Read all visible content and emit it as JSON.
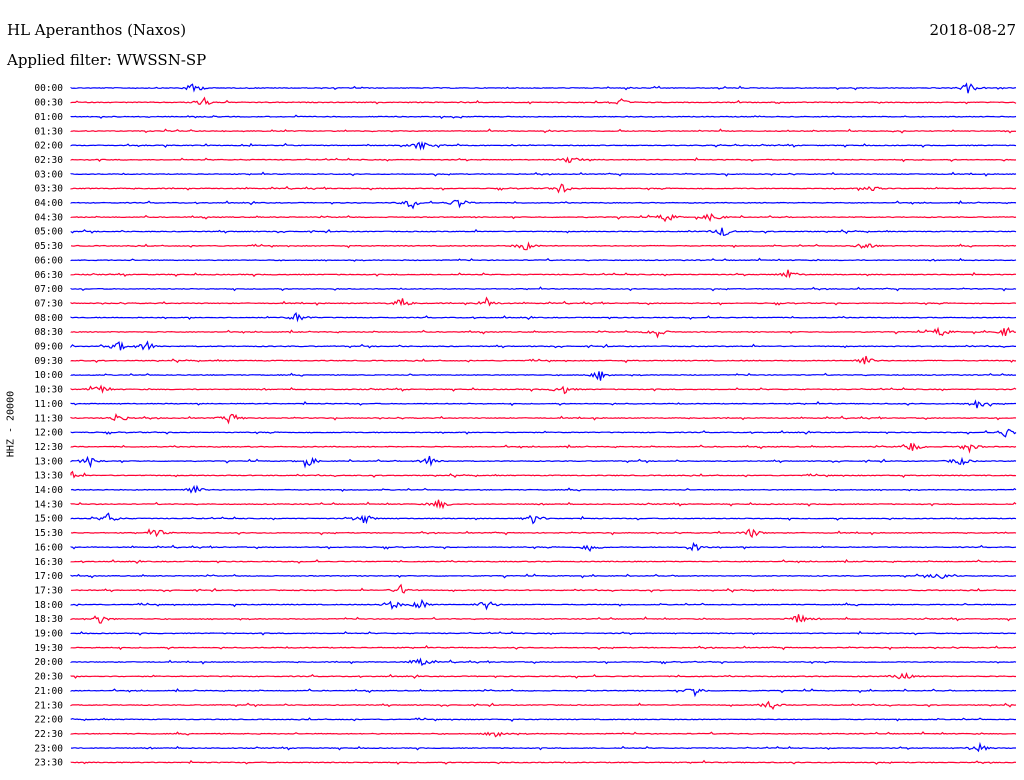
{
  "header": {
    "station": "HL Aperanthos (Naxos)",
    "date": "2018-08-27",
    "filter": "Applied filter: WWSSN-SP"
  },
  "chart_data": {
    "type": "line",
    "channel_label": "HHZ - 20000",
    "trace_colors": [
      "#0000ff",
      "#ff0033"
    ],
    "grid": false,
    "rows": [
      {
        "time": "00:00",
        "events": [
          0.13,
          0.95
        ]
      },
      {
        "time": "00:30",
        "events": [
          0.14,
          0.58
        ]
      },
      {
        "time": "01:00",
        "events": []
      },
      {
        "time": "01:30",
        "events": []
      },
      {
        "time": "02:00",
        "events": [
          0.37
        ]
      },
      {
        "time": "02:30",
        "events": [
          0.53
        ]
      },
      {
        "time": "03:00",
        "events": []
      },
      {
        "time": "03:30",
        "events": [
          0.52,
          0.85
        ]
      },
      {
        "time": "04:00",
        "events": [
          0.36,
          0.41
        ]
      },
      {
        "time": "04:30",
        "events": [
          0.63,
          0.68
        ]
      },
      {
        "time": "05:00",
        "events": [
          0.69
        ]
      },
      {
        "time": "05:30",
        "events": [
          0.48,
          0.84
        ]
      },
      {
        "time": "06:00",
        "events": []
      },
      {
        "time": "06:30",
        "events": [
          0.76
        ]
      },
      {
        "time": "07:00",
        "events": []
      },
      {
        "time": "07:30",
        "events": [
          0.35,
          0.44
        ]
      },
      {
        "time": "08:00",
        "events": [
          0.24
        ]
      },
      {
        "time": "08:30",
        "events": [
          0.62,
          0.92,
          0.99
        ]
      },
      {
        "time": "09:00",
        "events": [
          0.05,
          0.08
        ]
      },
      {
        "time": "09:30",
        "events": [
          0.84
        ]
      },
      {
        "time": "10:00",
        "events": [
          0.56
        ]
      },
      {
        "time": "10:30",
        "events": [
          0.03,
          0.52
        ]
      },
      {
        "time": "11:00",
        "events": [
          0.96
        ]
      },
      {
        "time": "11:30",
        "events": [
          0.05,
          0.17
        ]
      },
      {
        "time": "12:00",
        "events": [
          0.99
        ]
      },
      {
        "time": "12:30",
        "events": [
          0.89,
          0.95
        ]
      },
      {
        "time": "13:00",
        "events": [
          0.02,
          0.25,
          0.38,
          0.94
        ]
      },
      {
        "time": "13:30",
        "events": [
          0.0
        ]
      },
      {
        "time": "14:00",
        "events": [
          0.13
        ]
      },
      {
        "time": "14:30",
        "events": [
          0.39
        ]
      },
      {
        "time": "15:00",
        "events": [
          0.04,
          0.31,
          0.49
        ]
      },
      {
        "time": "15:30",
        "events": [
          0.09,
          0.72
        ]
      },
      {
        "time": "16:00",
        "events": [
          0.55,
          0.66
        ]
      },
      {
        "time": "16:30",
        "events": []
      },
      {
        "time": "17:00",
        "events": [
          0.92
        ]
      },
      {
        "time": "17:30",
        "events": [
          0.35
        ]
      },
      {
        "time": "18:00",
        "events": [
          0.34,
          0.37,
          0.44
        ]
      },
      {
        "time": "18:30",
        "events": [
          0.03,
          0.77
        ]
      },
      {
        "time": "19:00",
        "events": []
      },
      {
        "time": "19:30",
        "events": []
      },
      {
        "time": "20:00",
        "events": [
          0.37
        ]
      },
      {
        "time": "20:30",
        "events": [
          0.88
        ]
      },
      {
        "time": "21:00",
        "events": [
          0.66
        ]
      },
      {
        "time": "21:30",
        "events": [
          0.74
        ]
      },
      {
        "time": "22:00",
        "events": []
      },
      {
        "time": "22:30",
        "events": [
          0.45
        ]
      },
      {
        "time": "23:00",
        "events": [
          0.96
        ]
      },
      {
        "time": "23:30",
        "events": []
      }
    ]
  }
}
